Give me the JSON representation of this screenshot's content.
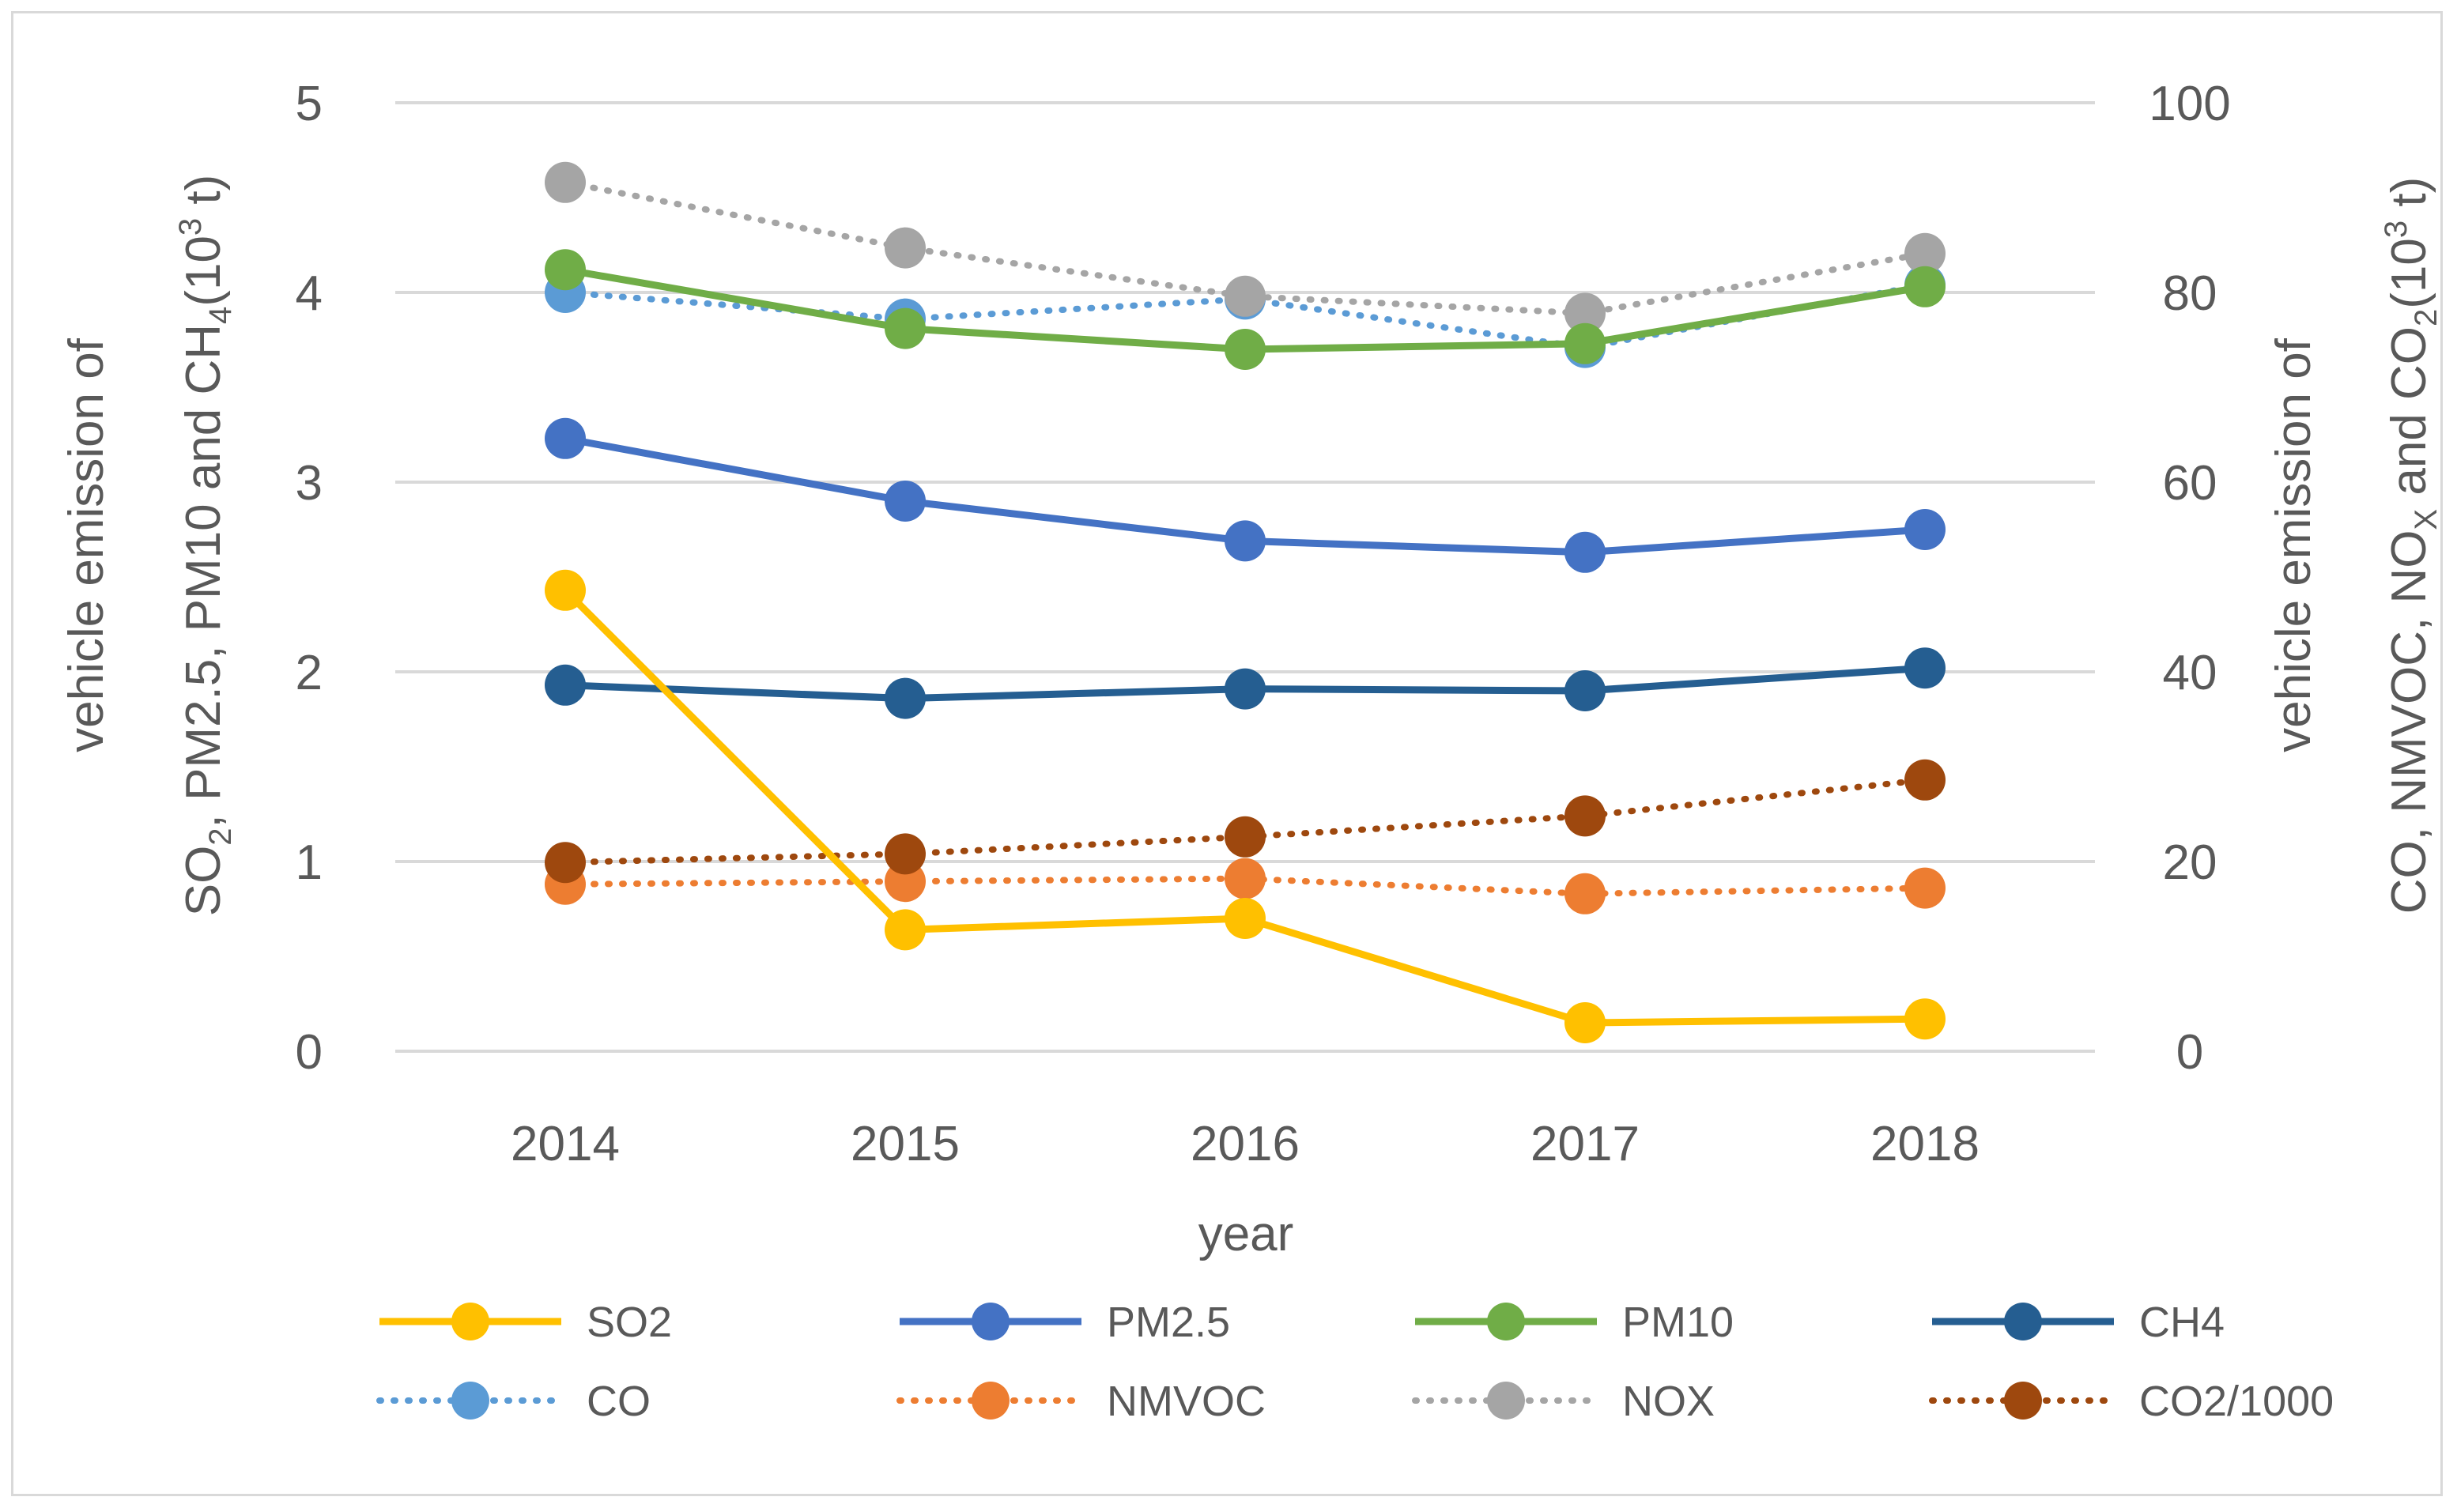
{
  "chart_data": {
    "type": "line",
    "xlabel": "year",
    "ylabel_left": {
      "pre": "SO",
      "sub1": "2",
      "mid1": ", PM2.5, PM10 and CH",
      "sub2": "4",
      "mid2": "(10",
      "sup": "3",
      "post": " t)",
      "line1": "vehicle emission of"
    },
    "ylabel_right": {
      "pre": "CO, NMVOC, NO",
      "sub1": "X",
      "mid1": " and CO",
      "sub2": "2",
      "mid2": "(10",
      "sup": "3",
      "post": " t)",
      "line1": "vehicle emission of"
    },
    "ylim_left": [
      0,
      5
    ],
    "ylim_right": [
      0,
      100
    ],
    "yticks_left": [
      "0",
      "1",
      "2",
      "3",
      "4",
      "5"
    ],
    "yticks_right": [
      "0",
      "20",
      "40",
      "60",
      "80",
      "100"
    ],
    "categories": [
      "2014",
      "2015",
      "2016",
      "2017",
      "2018"
    ],
    "series": [
      {
        "name": "SO2",
        "axis": "left",
        "style": "solid",
        "color": "#FFC000",
        "values": [
          2.43,
          0.64,
          0.7,
          0.15,
          0.17
        ]
      },
      {
        "name": "PM2.5",
        "axis": "left",
        "style": "solid",
        "color": "#4472C4",
        "values": [
          3.23,
          2.9,
          2.69,
          2.63,
          2.75
        ]
      },
      {
        "name": "PM10",
        "axis": "left",
        "style": "solid",
        "color": "#70AD47",
        "values": [
          4.12,
          3.81,
          3.7,
          3.73,
          4.03
        ]
      },
      {
        "name": "CH4",
        "axis": "left",
        "style": "solid",
        "color": "#255E91",
        "values": [
          1.93,
          1.86,
          1.91,
          1.9,
          2.02
        ]
      },
      {
        "name": "CO",
        "axis": "right",
        "style": "dotted",
        "color": "#5B9BD5",
        "values": [
          80.0,
          77.2,
          79.3,
          74.2,
          80.8
        ]
      },
      {
        "name": "NMVOC",
        "axis": "right",
        "style": "dotted",
        "color": "#ED7D31",
        "values": [
          17.6,
          17.9,
          18.2,
          16.6,
          17.2
        ]
      },
      {
        "name": "NOX",
        "axis": "right",
        "style": "dotted",
        "color": "#A5A5A5",
        "values": [
          91.6,
          84.7,
          79.6,
          77.8,
          84.1
        ]
      },
      {
        "name": "CO2/1000",
        "axis": "right",
        "style": "dotted",
        "color": "#9E480E",
        "values": [
          19.9,
          20.8,
          22.6,
          24.8,
          28.6
        ]
      }
    ],
    "legend_position": "bottom",
    "grid": true
  }
}
